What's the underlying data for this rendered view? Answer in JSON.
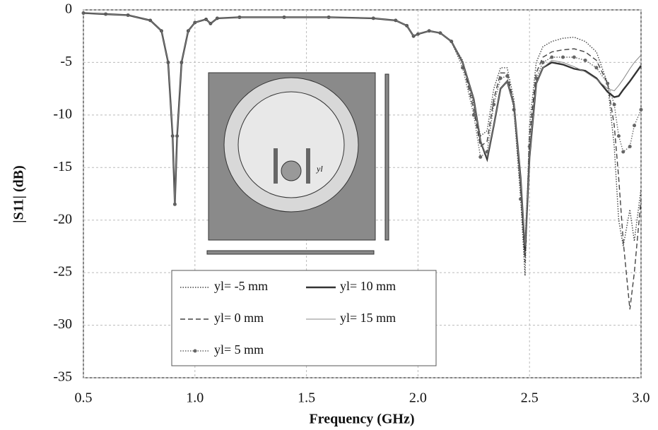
{
  "chart_data": {
    "type": "line",
    "x_label": "Frequency (GHz)",
    "y_label": "|S11| (dB)",
    "inset_label": "yl",
    "x": [
      0.5,
      0.6,
      0.7,
      0.8,
      0.85,
      0.88,
      0.9,
      0.91,
      0.92,
      0.94,
      0.97,
      1.0,
      1.05,
      1.07,
      1.1,
      1.2,
      1.4,
      1.6,
      1.8,
      1.9,
      1.95,
      1.98,
      2.0,
      2.05,
      2.1,
      2.15,
      2.2,
      2.25,
      2.28,
      2.31,
      2.34,
      2.37,
      2.4,
      2.43,
      2.46,
      2.48,
      2.5,
      2.53,
      2.56,
      2.6,
      2.65,
      2.7,
      2.75,
      2.8,
      2.85,
      2.88,
      2.9,
      2.92,
      2.95,
      2.97,
      3.0
    ],
    "series": [
      {
        "name": "yl= -5 mm",
        "color": "#444",
        "line_style": "dotted",
        "marker": false,
        "values": [
          -0.3,
          -0.4,
          -0.5,
          -1.0,
          -2.0,
          -5,
          -12,
          -18.5,
          -12,
          -5,
          -2,
          -1.2,
          -0.9,
          -1.3,
          -0.8,
          -0.7,
          -0.7,
          -0.7,
          -0.8,
          -1.0,
          -1.5,
          -2.5,
          -2.3,
          -2,
          -2.2,
          -3,
          -4.8,
          -9,
          -12,
          -11.5,
          -7.5,
          -5.5,
          -5.5,
          -8.5,
          -18,
          -25.3,
          -11,
          -5,
          -3.5,
          -3,
          -2.7,
          -2.6,
          -3,
          -4,
          -7,
          -13,
          -20,
          -22.5,
          -19,
          -22,
          -17
        ]
      },
      {
        "name": "yl= 0 mm",
        "color": "#444",
        "line_style": "dashed",
        "marker": false,
        "values": [
          -0.3,
          -0.4,
          -0.5,
          -1.0,
          -2.0,
          -5,
          -12,
          -18.5,
          -12,
          -5,
          -2,
          -1.2,
          -0.9,
          -1.3,
          -0.8,
          -0.7,
          -0.7,
          -0.7,
          -0.8,
          -1.0,
          -1.5,
          -2.5,
          -2.3,
          -2,
          -2.2,
          -3,
          -5,
          -9.5,
          -13,
          -12.5,
          -8.5,
          -6,
          -6,
          -9,
          -17,
          -24,
          -12,
          -6,
          -4.5,
          -4,
          -3.8,
          -3.7,
          -4,
          -4.8,
          -7,
          -11,
          -16,
          -22,
          -28.5,
          -25,
          -18
        ]
      },
      {
        "name": "yl= 5 mm",
        "color": "#666",
        "line_style": "dotted",
        "marker": true,
        "values": [
          -0.3,
          -0.4,
          -0.5,
          -1.0,
          -2.0,
          -5,
          -12,
          -18.5,
          -12,
          -5,
          -2,
          -1.2,
          -0.9,
          -1.3,
          -0.8,
          -0.7,
          -0.7,
          -0.7,
          -0.8,
          -1.0,
          -1.5,
          -2.5,
          -2.3,
          -2,
          -2.2,
          -3,
          -5.5,
          -10,
          -14,
          -13.5,
          -9,
          -6.5,
          -6.3,
          -9.5,
          -18,
          -22,
          -13,
          -6.5,
          -5,
          -4.5,
          -4.5,
          -4.5,
          -4.8,
          -5.5,
          -7,
          -9,
          -12,
          -13.5,
          -13,
          -11,
          -9.5
        ]
      },
      {
        "name": "yl= 10 mm",
        "color": "#333",
        "line_style": "thick",
        "marker": false,
        "values": [
          -0.3,
          -0.4,
          -0.5,
          -1.0,
          -2.0,
          -5,
          -12,
          -18.5,
          -12,
          -5,
          -2,
          -1.2,
          -0.9,
          -1.3,
          -0.8,
          -0.7,
          -0.7,
          -0.7,
          -0.8,
          -1.0,
          -1.5,
          -2.5,
          -2.3,
          -2,
          -2.2,
          -3,
          -5,
          -8.5,
          -12.5,
          -14.2,
          -11,
          -7.5,
          -6.8,
          -9,
          -16,
          -23,
          -14,
          -7,
          -5.5,
          -5,
          -5.2,
          -5.6,
          -5.8,
          -6.5,
          -7.8,
          -8.3,
          -8.2,
          -7.6,
          -6.8,
          -6.2,
          -5.3
        ]
      },
      {
        "name": "yl= 15 mm",
        "color": "#888",
        "line_style": "thin",
        "marker": false,
        "values": [
          -0.3,
          -0.4,
          -0.5,
          -1.0,
          -2.0,
          -5,
          -12,
          -18.5,
          -12,
          -5,
          -2,
          -1.2,
          -0.9,
          -1.3,
          -0.8,
          -0.7,
          -0.7,
          -0.7,
          -0.8,
          -1.0,
          -1.5,
          -2.5,
          -2.3,
          -2,
          -2.2,
          -3,
          -5,
          -8.5,
          -12.5,
          -14,
          -11,
          -7.5,
          -6.8,
          -9,
          -16,
          -22.5,
          -14,
          -7,
          -5.5,
          -4.8,
          -5,
          -5.4,
          -5.9,
          -6.6,
          -7.5,
          -7.7,
          -7.2,
          -6.6,
          -5.6,
          -5,
          -4.3
        ]
      }
    ],
    "xlim": [
      0.5,
      3.0
    ],
    "xticks": [
      0.5,
      {
        "value": 1,
        "label": "1.0"
      },
      1.5,
      {
        "value": 2,
        "label": "2.0"
      },
      2.5,
      {
        "value": 3,
        "label": "3.0"
      }
    ],
    "ylim": [
      -35,
      0
    ],
    "yticks": [
      0,
      -5,
      -10,
      -15,
      -20,
      -25,
      -30,
      -35
    ],
    "grid": true,
    "legend": "bottom-left"
  }
}
